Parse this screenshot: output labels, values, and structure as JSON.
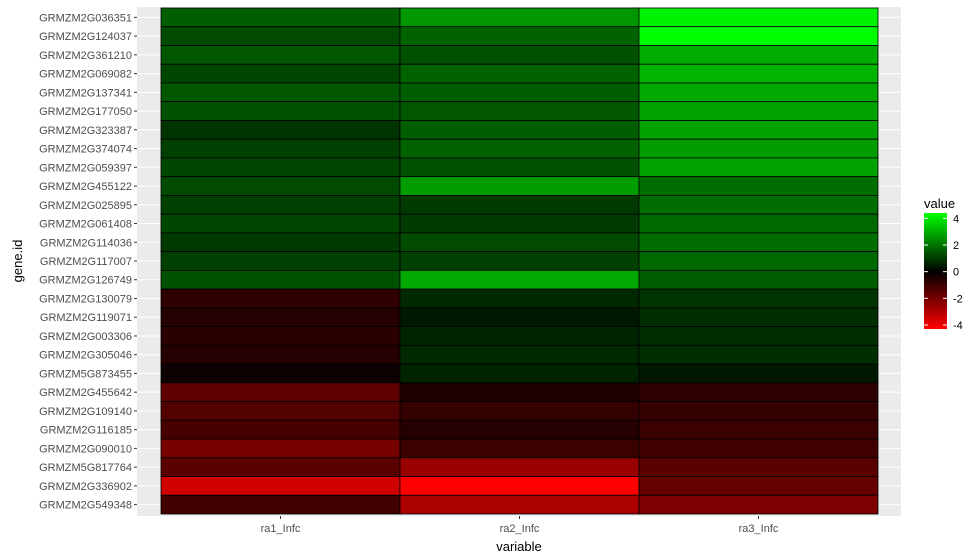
{
  "chart_data": {
    "type": "heatmap",
    "xlabel": "variable",
    "ylabel": "gene.id",
    "x_categories": [
      "ra1_Infc",
      "ra2_Infc",
      "ra3_Infc"
    ],
    "y_categories": [
      "GRMZM2G036351",
      "GRMZM2G124037",
      "GRMZM2G361210",
      "GRMZM2G069082",
      "GRMZM2G137341",
      "GRMZM2G177050",
      "GRMZM2G323387",
      "GRMZM2G374074",
      "GRMZM2G059397",
      "GRMZM2G455122",
      "GRMZM2G025895",
      "GRMZM2G061408",
      "GRMZM2G114036",
      "GRMZM2G117007",
      "GRMZM2G126749",
      "GRMZM2G130079",
      "GRMZM2G119071",
      "GRMZM2G003306",
      "GRMZM2G305046",
      "GRMZM5G873455",
      "GRMZM2G455642",
      "GRMZM2G109140",
      "GRMZM2G116185",
      "GRMZM2G090010",
      "GRMZM5G817764",
      "GRMZM2G336902",
      "GRMZM2G549348"
    ],
    "values": [
      [
        1.6,
        2.6,
        4.2
      ],
      [
        1.3,
        1.7,
        4.4
      ],
      [
        1.5,
        1.4,
        3.0
      ],
      [
        1.2,
        1.7,
        3.1
      ],
      [
        1.5,
        1.6,
        2.9
      ],
      [
        1.4,
        1.5,
        2.8
      ],
      [
        0.9,
        1.6,
        2.8
      ],
      [
        1.1,
        1.7,
        2.7
      ],
      [
        1.2,
        1.4,
        2.8
      ],
      [
        1.3,
        2.7,
        1.9
      ],
      [
        1.1,
        1.0,
        1.9
      ],
      [
        1.2,
        1.0,
        1.8
      ],
      [
        1.0,
        1.3,
        1.9
      ],
      [
        1.1,
        1.1,
        1.8
      ],
      [
        1.4,
        2.9,
        1.6
      ],
      [
        -0.8,
        0.7,
        0.9
      ],
      [
        -0.6,
        0.4,
        0.8
      ],
      [
        -0.7,
        0.6,
        0.8
      ],
      [
        -0.6,
        0.7,
        0.8
      ],
      [
        -0.2,
        0.6,
        0.4
      ],
      [
        -1.6,
        -0.5,
        -0.8
      ],
      [
        -1.4,
        -0.9,
        -0.9
      ],
      [
        -1.2,
        -0.6,
        -1.0
      ],
      [
        -2.0,
        -1.0,
        -1.1
      ],
      [
        -1.5,
        -2.6,
        -1.5
      ],
      [
        -3.5,
        -4.3,
        -1.7
      ],
      [
        -1.1,
        -2.9,
        -2.1
      ]
    ],
    "legend": {
      "title": "value",
      "ticks": [
        "4",
        "2",
        "0",
        "-2",
        "-4"
      ],
      "tick_values": [
        4,
        2,
        0,
        -2,
        -4
      ],
      "range": [
        -4.3,
        4.4
      ],
      "colors": {
        "low": "#ff0000",
        "mid": "#000000",
        "high": "#00ff00"
      },
      "placement": "right"
    },
    "panel_background": "#ebebeb",
    "grid": true
  }
}
